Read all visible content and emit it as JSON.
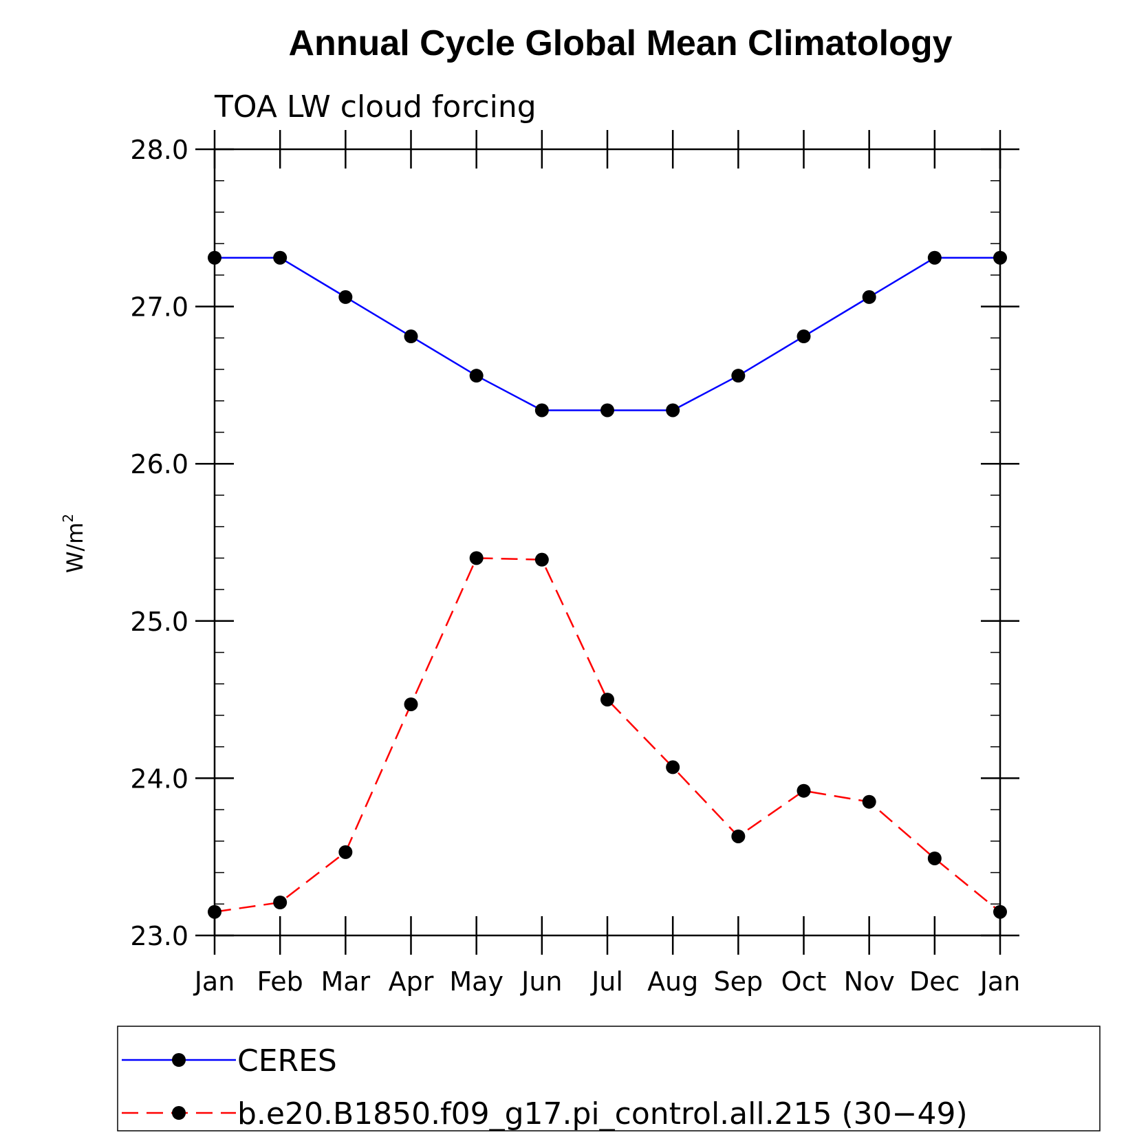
{
  "chart_data": {
    "type": "line",
    "title": "Annual Cycle Global Mean Climatology",
    "subtitle": "TOA LW cloud forcing",
    "xlabel": "",
    "ylabel": "W/m",
    "ylabel_sup": "2",
    "categories": [
      "Jan",
      "Feb",
      "Mar",
      "Apr",
      "May",
      "Jun",
      "Jul",
      "Aug",
      "Sep",
      "Oct",
      "Nov",
      "Dec",
      "Jan"
    ],
    "ylim": [
      23.0,
      28.0
    ],
    "yticks": [
      "23.0",
      "24.0",
      "25.0",
      "26.0",
      "27.0",
      "28.0"
    ],
    "grid": false,
    "legend_position": "bottom",
    "series": [
      {
        "name": "CERES",
        "color": "#0000ff",
        "style": "solid",
        "marker": "filled-circle",
        "values": [
          27.31,
          27.31,
          27.06,
          26.81,
          26.56,
          26.34,
          26.34,
          26.34,
          26.56,
          26.81,
          27.06,
          27.31,
          27.31
        ]
      },
      {
        "name": "b.e20.B1850.f09_g17.pi_control.all.215 (30−49)",
        "color": "#ff0000",
        "style": "dashed",
        "marker": "filled-circle",
        "values": [
          23.15,
          23.21,
          23.53,
          24.47,
          25.4,
          25.39,
          24.5,
          24.07,
          23.63,
          23.92,
          23.85,
          23.49,
          23.15
        ]
      }
    ]
  }
}
